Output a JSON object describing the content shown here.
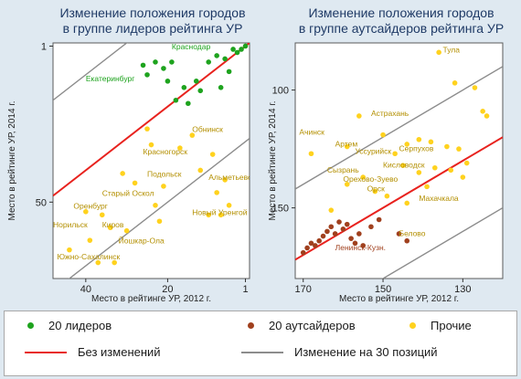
{
  "chart_data": [
    {
      "type": "scatter",
      "title": "Изменение положения городов\nв группе лидеров рейтинга УР",
      "xlabel": "Место в рейтинге УР, 2012 г.",
      "ylabel": "Место в рейтинге УР, 2014 г.",
      "xlim": [
        48,
        0
      ],
      "ylim": [
        74,
        0
      ],
      "x_ticks": [
        40,
        20,
        1
      ],
      "y_ticks": [
        1,
        50
      ],
      "grid": false,
      "reference_lines": [
        {
          "name": "Без изменений",
          "offset": 0,
          "color": "#e8221e"
        },
        {
          "name": "Изменение на 30 позиций",
          "offset": -30,
          "color": "#8c8c8c"
        },
        {
          "name": "Изменение на 30 позиций",
          "offset": 30,
          "color": "#8c8c8c"
        }
      ],
      "series": [
        {
          "name": "20 лидеров",
          "color": "#1ea31e",
          "points": [
            {
              "x": 1,
              "y": 1
            },
            {
              "x": 2,
              "y": 2
            },
            {
              "x": 3,
              "y": 3
            },
            {
              "x": 4,
              "y": 2
            },
            {
              "x": 5,
              "y": 9
            },
            {
              "x": 6,
              "y": 5
            },
            {
              "x": 7,
              "y": 14
            },
            {
              "x": 8,
              "y": 4
            },
            {
              "x": 10,
              "y": 6
            },
            {
              "x": 12,
              "y": 15
            },
            {
              "x": 13,
              "y": 12
            },
            {
              "x": 15,
              "y": 19
            },
            {
              "x": 16,
              "y": 14
            },
            {
              "x": 18,
              "y": 18
            },
            {
              "x": 19,
              "y": 6
            },
            {
              "x": 20,
              "y": 12
            },
            {
              "x": 21,
              "y": 8
            },
            {
              "x": 23,
              "y": 6
            },
            {
              "x": 25,
              "y": 10
            },
            {
              "x": 26,
              "y": 7
            }
          ]
        },
        {
          "name": "Прочие",
          "color": "#ffd21e",
          "points": [
            {
              "x": 44,
              "y": 65
            },
            {
              "x": 40,
              "y": 53
            },
            {
              "x": 39,
              "y": 62
            },
            {
              "x": 37,
              "y": 69
            },
            {
              "x": 36,
              "y": 54
            },
            {
              "x": 34,
              "y": 58
            },
            {
              "x": 33,
              "y": 69
            },
            {
              "x": 31,
              "y": 41
            },
            {
              "x": 30,
              "y": 59
            },
            {
              "x": 28,
              "y": 44
            },
            {
              "x": 25,
              "y": 27
            },
            {
              "x": 24,
              "y": 32
            },
            {
              "x": 23,
              "y": 51
            },
            {
              "x": 22,
              "y": 56
            },
            {
              "x": 21,
              "y": 45
            },
            {
              "x": 17,
              "y": 33
            },
            {
              "x": 14,
              "y": 29
            },
            {
              "x": 12,
              "y": 40
            },
            {
              "x": 10,
              "y": 54
            },
            {
              "x": 9,
              "y": 35
            },
            {
              "x": 8,
              "y": 47
            },
            {
              "x": 7,
              "y": 54
            },
            {
              "x": 6,
              "y": 43
            },
            {
              "x": 5,
              "y": 51
            }
          ]
        }
      ],
      "annotations": [
        {
          "text": "Краснодар",
          "x": 19,
          "y": 2,
          "color": "#1ea31e"
        },
        {
          "text": "Екатеринбург",
          "x": 40,
          "y": 12,
          "color": "#1ea31e"
        },
        {
          "text": "Обнинск",
          "x": 14,
          "y": 28,
          "color": "#b38f00"
        },
        {
          "text": "Красногорск",
          "x": 26,
          "y": 35,
          "color": "#b38f00"
        },
        {
          "text": "Подольск",
          "x": 25,
          "y": 42,
          "color": "#b38f00"
        },
        {
          "text": "Альметьевск",
          "x": 10,
          "y": 43,
          "color": "#b38f00"
        },
        {
          "text": "Старый Оскол",
          "x": 36,
          "y": 48,
          "color": "#b38f00"
        },
        {
          "text": "Оренбург",
          "x": 43,
          "y": 52,
          "color": "#b38f00"
        },
        {
          "text": "Новый Уренгой",
          "x": 14,
          "y": 54,
          "color": "#b38f00"
        },
        {
          "text": "Норильск",
          "x": 48,
          "y": 58,
          "color": "#b38f00"
        },
        {
          "text": "Киров",
          "x": 36,
          "y": 58,
          "color": "#b38f00"
        },
        {
          "text": "Йошкар-Ола",
          "x": 32,
          "y": 63,
          "color": "#b38f00"
        },
        {
          "text": "Южно-Сахалинск",
          "x": 47,
          "y": 68,
          "color": "#b38f00"
        }
      ]
    },
    {
      "type": "scatter",
      "title": "Изменение положения городов\nв группе аутсайдеров рейтинга УР",
      "xlabel": "Место в рейтинге УР, 2012 г.",
      "ylabel": "Место в рейтинге УР, 2014 г.",
      "xlim": [
        172,
        120
      ],
      "ylim": [
        180,
        80
      ],
      "x_ticks": [
        170,
        150,
        130
      ],
      "y_ticks": [
        100,
        150
      ],
      "grid": false,
      "reference_lines": [
        {
          "name": "Без изменений",
          "offset": 0,
          "color": "#e8221e"
        },
        {
          "name": "Изменение на 30 позиций",
          "offset": -30,
          "color": "#8c8c8c"
        },
        {
          "name": "Изменение на 30 позиций",
          "offset": 30,
          "color": "#8c8c8c"
        }
      ],
      "series": [
        {
          "name": "20 аутсайдеров",
          "color": "#a0401e",
          "points": [
            {
              "x": 170,
              "y": 169
            },
            {
              "x": 169,
              "y": 167
            },
            {
              "x": 168,
              "y": 165
            },
            {
              "x": 167,
              "y": 166
            },
            {
              "x": 166,
              "y": 164
            },
            {
              "x": 165,
              "y": 162
            },
            {
              "x": 164,
              "y": 160
            },
            {
              "x": 163,
              "y": 158
            },
            {
              "x": 162,
              "y": 161
            },
            {
              "x": 161,
              "y": 156
            },
            {
              "x": 160,
              "y": 159
            },
            {
              "x": 159,
              "y": 157
            },
            {
              "x": 158,
              "y": 163
            },
            {
              "x": 157,
              "y": 165
            },
            {
              "x": 156,
              "y": 161
            },
            {
              "x": 155,
              "y": 166
            },
            {
              "x": 153,
              "y": 158
            },
            {
              "x": 151,
              "y": 155
            },
            {
              "x": 146,
              "y": 161
            },
            {
              "x": 144,
              "y": 164
            }
          ]
        },
        {
          "name": "Прочие",
          "color": "#ffd21e",
          "points": [
            {
              "x": 136,
              "y": 84
            },
            {
              "x": 132,
              "y": 97
            },
            {
              "x": 127,
              "y": 99
            },
            {
              "x": 125,
              "y": 109
            },
            {
              "x": 124,
              "y": 111
            },
            {
              "x": 156,
              "y": 111
            },
            {
              "x": 150,
              "y": 119
            },
            {
              "x": 159,
              "y": 124
            },
            {
              "x": 147,
              "y": 127
            },
            {
              "x": 144,
              "y": 123
            },
            {
              "x": 141,
              "y": 121
            },
            {
              "x": 138,
              "y": 122
            },
            {
              "x": 134,
              "y": 124
            },
            {
              "x": 131,
              "y": 125
            },
            {
              "x": 145,
              "y": 132
            },
            {
              "x": 141,
              "y": 135
            },
            {
              "x": 137,
              "y": 133
            },
            {
              "x": 133,
              "y": 134
            },
            {
              "x": 130,
              "y": 137
            },
            {
              "x": 129,
              "y": 131
            },
            {
              "x": 159,
              "y": 140
            },
            {
              "x": 155,
              "y": 137
            },
            {
              "x": 152,
              "y": 143
            },
            {
              "x": 144,
              "y": 148
            },
            {
              "x": 149,
              "y": 145
            },
            {
              "x": 163,
              "y": 151
            },
            {
              "x": 139,
              "y": 141
            },
            {
              "x": 168,
              "y": 127
            }
          ]
        }
      ],
      "annotations": [
        {
          "text": "Тула",
          "x": 135,
          "y": 84,
          "color": "#b38f00"
        },
        {
          "text": "Астрахань",
          "x": 153,
          "y": 111,
          "color": "#b38f00"
        },
        {
          "text": "Ачинск",
          "x": 171,
          "y": 119,
          "color": "#b38f00"
        },
        {
          "text": "Артем",
          "x": 162,
          "y": 124,
          "color": "#b38f00"
        },
        {
          "text": "Уссурийск",
          "x": 157,
          "y": 127,
          "color": "#b38f00"
        },
        {
          "text": "Серпухов",
          "x": 146,
          "y": 126,
          "color": "#b38f00"
        },
        {
          "text": "Кисловодск",
          "x": 150,
          "y": 133,
          "color": "#b38f00"
        },
        {
          "text": "Сызрань",
          "x": 164,
          "y": 135,
          "color": "#b38f00"
        },
        {
          "text": "Орехово-Зуево",
          "x": 160,
          "y": 139,
          "color": "#b38f00"
        },
        {
          "text": "Орск",
          "x": 154,
          "y": 143,
          "color": "#b38f00"
        },
        {
          "text": "Махачкала",
          "x": 141,
          "y": 147,
          "color": "#b38f00"
        },
        {
          "text": "Белово",
          "x": 146,
          "y": 162,
          "color": "#b38f00"
        },
        {
          "text": "Ленинск-Кузн.",
          "x": 162,
          "y": 168,
          "color": "#a0401e"
        }
      ]
    }
  ],
  "legend": {
    "leaders": {
      "label": "20 лидеров",
      "color": "#1ea31e"
    },
    "outsiders": {
      "label": "20 аутсайдеров",
      "color": "#a0401e"
    },
    "others": {
      "label": "Прочие",
      "color": "#ffd21e"
    },
    "no_change": {
      "label": "Без изменений",
      "color": "#e8221e"
    },
    "change30": {
      "label": "Изменение на 30 позиций",
      "color": "#8c8c8c"
    }
  }
}
